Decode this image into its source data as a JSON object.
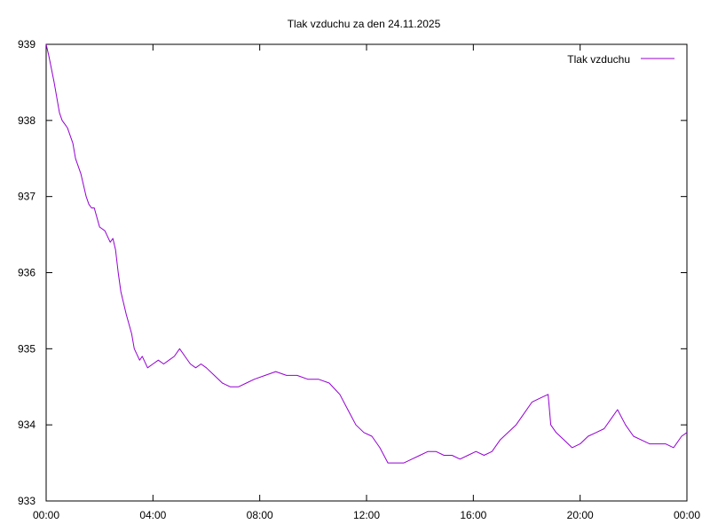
{
  "chart_data": {
    "type": "line",
    "title": "Tlak vzduchu za den 24.11.2025",
    "xlabel": "",
    "ylabel": "",
    "xlim": [
      0,
      24
    ],
    "ylim": [
      933,
      939
    ],
    "x_ticks": [
      "00:00",
      "04:00",
      "08:00",
      "12:00",
      "16:00",
      "20:00",
      "00:00"
    ],
    "y_ticks": [
      "933",
      "934",
      "935",
      "936",
      "937",
      "938",
      "939"
    ],
    "grid": false,
    "legend_position": "top-right",
    "series": [
      {
        "name": "Tlak vzduchu",
        "color": "#9400d3",
        "x": [
          0.0,
          0.1,
          0.3,
          0.5,
          0.6,
          0.7,
          0.8,
          1.0,
          1.1,
          1.3,
          1.5,
          1.6,
          1.7,
          1.8,
          2.0,
          2.2,
          2.4,
          2.5,
          2.6,
          2.7,
          2.8,
          3.0,
          3.2,
          3.3,
          3.5,
          3.6,
          3.8,
          4.0,
          4.2,
          4.4,
          4.6,
          4.8,
          5.0,
          5.2,
          5.4,
          5.6,
          5.8,
          6.0,
          6.3,
          6.6,
          6.9,
          7.2,
          7.5,
          7.8,
          8.2,
          8.6,
          9.0,
          9.4,
          9.8,
          10.2,
          10.6,
          11.0,
          11.3,
          11.6,
          11.9,
          12.2,
          12.5,
          12.8,
          13.1,
          13.4,
          13.7,
          14.0,
          14.3,
          14.6,
          14.9,
          15.2,
          15.5,
          15.8,
          16.1,
          16.4,
          16.7,
          17.0,
          17.3,
          17.6,
          17.9,
          18.2,
          18.5,
          18.8,
          18.9,
          19.1,
          19.4,
          19.7,
          20.0,
          20.3,
          20.6,
          20.9,
          21.2,
          21.4,
          21.7,
          22.0,
          22.3,
          22.6,
          22.9,
          23.2,
          23.5,
          23.8,
          24.0
        ],
        "y": [
          939.0,
          938.85,
          938.5,
          938.1,
          938.0,
          937.95,
          937.9,
          937.7,
          937.5,
          937.3,
          937.0,
          936.9,
          936.85,
          936.85,
          936.6,
          936.55,
          936.4,
          936.45,
          936.3,
          936.0,
          935.75,
          935.45,
          935.2,
          935.0,
          934.85,
          934.9,
          934.75,
          934.8,
          934.85,
          934.8,
          934.85,
          934.9,
          935.0,
          934.9,
          934.8,
          934.75,
          934.8,
          934.75,
          934.65,
          934.55,
          934.5,
          934.5,
          934.55,
          934.6,
          934.65,
          934.7,
          934.65,
          934.65,
          934.6,
          934.6,
          934.55,
          934.4,
          934.2,
          934.0,
          933.9,
          933.85,
          933.7,
          933.5,
          933.5,
          933.5,
          933.55,
          933.6,
          933.65,
          933.65,
          933.6,
          933.6,
          933.55,
          933.6,
          933.65,
          933.6,
          933.65,
          933.8,
          933.9,
          934.0,
          934.15,
          934.3,
          934.35,
          934.4,
          934.0,
          933.9,
          933.8,
          933.7,
          933.75,
          933.85,
          933.9,
          933.95,
          934.1,
          934.2,
          934.0,
          933.85,
          933.8,
          933.75,
          933.75,
          933.75,
          933.7,
          933.85,
          933.9
        ]
      }
    ]
  }
}
